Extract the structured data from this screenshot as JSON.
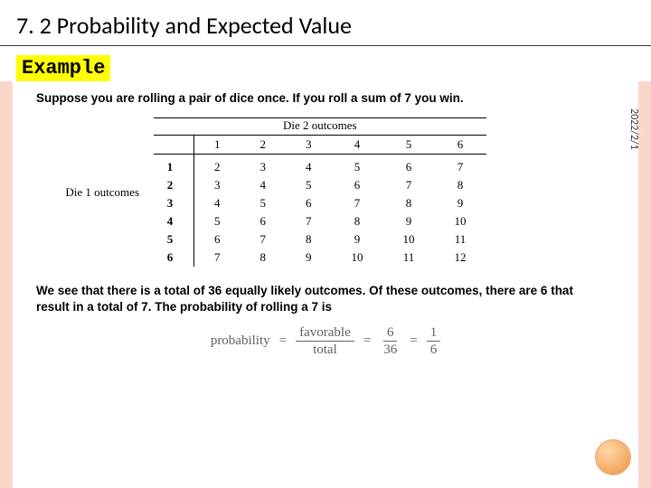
{
  "title": "7. 2 Probability and Expected Value",
  "example_label": "Example",
  "side_date": "2022/2/1",
  "intro_text": "Suppose you are rolling a pair of dice once. If you roll a sum of 7 you win.",
  "conclusion_text": "We see that there is a total of 36 equally likely outcomes. Of these outcomes, there are 6 that result in a total of 7. The probability of rolling a 7 is",
  "dice": {
    "die1_label": "Die 1 outcomes",
    "die2_label": "Die 2 outcomes",
    "column_headers": [
      "1",
      "2",
      "3",
      "4",
      "5",
      "6"
    ],
    "row_headers": [
      "1",
      "2",
      "3",
      "4",
      "5",
      "6"
    ],
    "rows": [
      [
        "2",
        "3",
        "4",
        "5",
        "6",
        "7"
      ],
      [
        "3",
        "4",
        "5",
        "6",
        "7",
        "8"
      ],
      [
        "4",
        "5",
        "6",
        "7",
        "8",
        "9"
      ],
      [
        "5",
        "6",
        "7",
        "8",
        "9",
        "10"
      ],
      [
        "6",
        "7",
        "8",
        "9",
        "10",
        "11"
      ],
      [
        "7",
        "8",
        "9",
        "10",
        "11",
        "12"
      ]
    ]
  },
  "formula": {
    "lhs": "probability",
    "frac1_num": "favorable",
    "frac1_den": "total",
    "frac2_num": "6",
    "frac2_den": "36",
    "frac3_num": "1",
    "frac3_den": "6"
  },
  "colors": {
    "highlight_bg": "#ffff00",
    "stripe": "#f8d7c8",
    "circle_gradient_from": "#ffd7a8",
    "circle_gradient_to": "#e88b3e",
    "formula_text": "#606060"
  }
}
